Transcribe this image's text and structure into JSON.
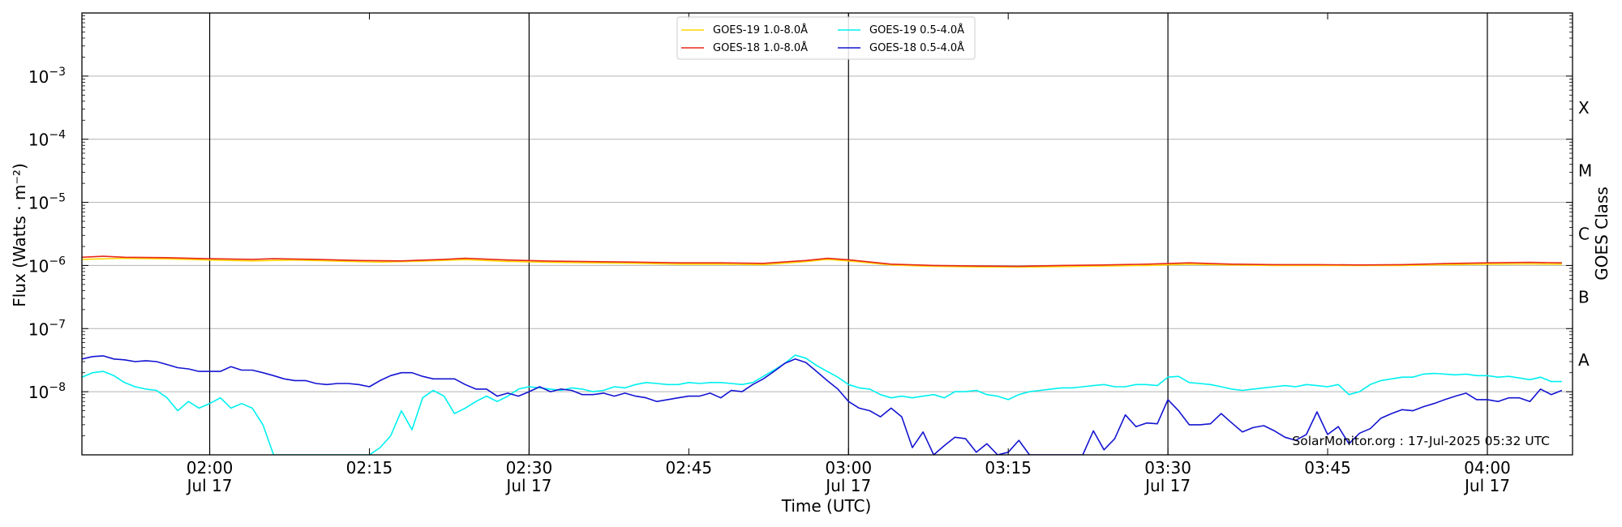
{
  "chart_data": {
    "type": "line",
    "ylabel": "Flux (Watts · m⁻²)",
    "y2label": "GOES Class",
    "xlabel": "Time (UTC)",
    "yscale": "log",
    "ylim": [
      1e-09,
      0.01
    ],
    "xlim": [
      "01:48",
      "04:08"
    ],
    "y_ticks": [
      {
        "value": 0.001,
        "base": "10",
        "exp": "−3"
      },
      {
        "value": 0.0001,
        "base": "10",
        "exp": "−4"
      },
      {
        "value": 1e-05,
        "base": "10",
        "exp": "−5"
      },
      {
        "value": 1e-06,
        "base": "10",
        "exp": "−6"
      },
      {
        "value": 1e-07,
        "base": "10",
        "exp": "−7"
      },
      {
        "value": 1e-08,
        "base": "10",
        "exp": "−8"
      }
    ],
    "x_ticks": [
      {
        "time": "02:00",
        "label": "02:00",
        "sub": "Jul 17"
      },
      {
        "time": "02:15",
        "label": "02:15",
        "sub": ""
      },
      {
        "time": "02:30",
        "label": "02:30",
        "sub": "Jul 17"
      },
      {
        "time": "02:45",
        "label": "02:45",
        "sub": ""
      },
      {
        "time": "03:00",
        "label": "03:00",
        "sub": "Jul 17"
      },
      {
        "time": "03:15",
        "label": "03:15",
        "sub": ""
      },
      {
        "time": "03:30",
        "label": "03:30",
        "sub": "Jul 17"
      },
      {
        "time": "03:45",
        "label": "03:45",
        "sub": ""
      },
      {
        "time": "04:00",
        "label": "04:00",
        "sub": "Jul 17"
      }
    ],
    "day_lines": [
      "02:00",
      "02:30",
      "03:00",
      "03:30",
      "04:00"
    ],
    "classes": [
      {
        "label": "X",
        "value": 0.000316
      },
      {
        "label": "M",
        "value": 3.16e-05
      },
      {
        "label": "C",
        "value": 3.16e-06
      },
      {
        "label": "B",
        "value": 3.16e-07
      },
      {
        "label": "A",
        "value": 3.16e-08
      }
    ],
    "grid": true,
    "legend_position": "top-center",
    "watermark": "SolarMonitor.org : 17-Jul-2025 05:32 UTC",
    "series": [
      {
        "name": "GOES-19 1.0-8.0Å",
        "color": "#ffd700",
        "x": [
          "01:48",
          "01:52",
          "01:56",
          "02:00",
          "02:04",
          "02:08",
          "02:12",
          "02:16",
          "02:20",
          "02:24",
          "02:28",
          "02:32",
          "02:36",
          "02:40",
          "02:44",
          "02:48",
          "02:52",
          "02:56",
          "02:58",
          "03:00",
          "03:04",
          "03:08",
          "03:12",
          "03:16",
          "03:20",
          "03:24",
          "03:28",
          "03:32",
          "03:36",
          "03:40",
          "03:44",
          "03:48",
          "03:52",
          "03:56",
          "04:00",
          "04:04",
          "04:07"
        ],
        "y": [
          1.25e-06,
          1.3e-06,
          1.27e-06,
          1.22e-06,
          1.18e-06,
          1.22e-06,
          1.17e-06,
          1.13e-06,
          1.17e-06,
          1.24e-06,
          1.16e-06,
          1.12e-06,
          1.1e-06,
          1.08e-06,
          1.05e-06,
          1.05e-06,
          1.03e-06,
          1.15e-06,
          1.25e-06,
          1.18e-06,
          1.02e-06,
          9.7e-07,
          9.5e-07,
          9.4e-07,
          9.6e-07,
          9.8e-07,
          1e-06,
          1.05e-06,
          1.02e-06,
          1e-06,
          1e-06,
          1e-06,
          1e-06,
          1.03e-06,
          1.05e-06,
          1.06e-06,
          1.05e-06
        ]
      },
      {
        "name": "GOES-18 1.0-8.0Å",
        "color": "#e8291b",
        "x": [
          "01:48",
          "01:50",
          "01:52",
          "01:56",
          "02:00",
          "02:04",
          "02:06",
          "02:10",
          "02:14",
          "02:18",
          "02:22",
          "02:24",
          "02:28",
          "02:32",
          "02:36",
          "02:40",
          "02:44",
          "02:48",
          "02:52",
          "02:56",
          "02:58",
          "03:00",
          "03:04",
          "03:08",
          "03:12",
          "03:16",
          "03:20",
          "03:24",
          "03:28",
          "03:32",
          "03:36",
          "03:40",
          "03:44",
          "03:48",
          "03:52",
          "03:56",
          "04:00",
          "04:04",
          "04:07"
        ],
        "y": [
          1.35e-06,
          1.4e-06,
          1.35e-06,
          1.33e-06,
          1.28e-06,
          1.25e-06,
          1.28e-06,
          1.25e-06,
          1.2e-06,
          1.18e-06,
          1.25e-06,
          1.3e-06,
          1.22e-06,
          1.17e-06,
          1.15e-06,
          1.13e-06,
          1.1e-06,
          1.1e-06,
          1.08e-06,
          1.2e-06,
          1.3e-06,
          1.23e-06,
          1.05e-06,
          1e-06,
          9.8e-07,
          9.7e-07,
          1e-06,
          1.02e-06,
          1.05e-06,
          1.1e-06,
          1.05e-06,
          1.03e-06,
          1.03e-06,
          1.02e-06,
          1.03e-06,
          1.07e-06,
          1.1e-06,
          1.12e-06,
          1.1e-06
        ]
      },
      {
        "name": "GOES-19 0.5-4.0Å",
        "color": "#00f0f0",
        "x": [
          "01:48",
          "01:49",
          "01:50",
          "01:51",
          "01:52",
          "01:53",
          "01:54",
          "01:55",
          "01:56",
          "01:57",
          "01:58",
          "01:59",
          "02:00",
          "02:01",
          "02:02",
          "02:03",
          "02:04",
          "02:05",
          "02:06",
          "02:07",
          "02:08",
          "02:09",
          "02:10",
          "02:11",
          "02:12",
          "02:13",
          "02:14",
          "02:15",
          "02:16",
          "02:17",
          "02:18",
          "02:19",
          "02:20",
          "02:21",
          "02:22",
          "02:23",
          "02:24",
          "02:25",
          "02:26",
          "02:27",
          "02:28",
          "02:29",
          "02:30",
          "02:31",
          "02:32",
          "02:33",
          "02:34",
          "02:35",
          "02:36",
          "02:37",
          "02:38",
          "02:39",
          "02:40",
          "02:41",
          "02:42",
          "02:43",
          "02:44",
          "02:45",
          "02:46",
          "02:47",
          "02:48",
          "02:49",
          "02:50",
          "02:51",
          "02:52",
          "02:53",
          "02:54",
          "02:55",
          "02:56",
          "02:57",
          "02:58",
          "02:59",
          "03:00",
          "03:01",
          "03:02",
          "03:03",
          "03:04",
          "03:05",
          "03:06",
          "03:07",
          "03:08",
          "03:09",
          "03:10",
          "03:11",
          "03:12",
          "03:13",
          "03:14",
          "03:15",
          "03:16",
          "03:17",
          "03:18",
          "03:19",
          "03:20",
          "03:21",
          "03:22",
          "03:23",
          "03:24",
          "03:25",
          "03:26",
          "03:27",
          "03:28",
          "03:29",
          "03:30",
          "03:31",
          "03:32",
          "03:33",
          "03:34",
          "03:35",
          "03:36",
          "03:37",
          "03:38",
          "03:39",
          "03:40",
          "03:41",
          "03:42",
          "03:43",
          "03:44",
          "03:45",
          "03:46",
          "03:47",
          "03:48",
          "03:49",
          "03:50",
          "03:51",
          "03:52",
          "03:53",
          "03:54",
          "03:55",
          "03:56",
          "03:57",
          "03:58",
          "03:59",
          "04:00",
          "04:01",
          "04:02",
          "04:03",
          "04:04",
          "04:05",
          "04:06",
          "04:07"
        ],
        "y": [
          1.7e-08,
          2e-08,
          2.1e-08,
          1.8e-08,
          1.4e-08,
          1.2e-08,
          1.1e-08,
          1.05e-08,
          8e-09,
          5e-09,
          7e-09,
          5.5e-09,
          6.5e-09,
          8e-09,
          5.5e-09,
          6.5e-09,
          5.5e-09,
          3e-09,
          1e-09,
          1e-09,
          1e-09,
          1e-09,
          1e-09,
          1e-09,
          1e-09,
          1e-09,
          1e-09,
          1e-09,
          1.3e-09,
          2e-09,
          5e-09,
          2.5e-09,
          8e-09,
          1.05e-08,
          8.5e-09,
          4.5e-09,
          5.5e-09,
          7e-09,
          8.5e-09,
          7e-09,
          8.5e-09,
          1.1e-08,
          1.2e-08,
          1.15e-08,
          1.1e-08,
          1.05e-08,
          1.15e-08,
          1.1e-08,
          1e-08,
          1.05e-08,
          1.2e-08,
          1.15e-08,
          1.3e-08,
          1.4e-08,
          1.35e-08,
          1.3e-08,
          1.3e-08,
          1.4e-08,
          1.35e-08,
          1.4e-08,
          1.4e-08,
          1.35e-08,
          1.3e-08,
          1.4e-08,
          1.75e-08,
          2.2e-08,
          2.8e-08,
          3.8e-08,
          3.4e-08,
          2.6e-08,
          2.1e-08,
          1.7e-08,
          1.3e-08,
          1.15e-08,
          1.1e-08,
          9e-09,
          8e-09,
          8.5e-09,
          8e-09,
          8.5e-09,
          9e-09,
          8e-09,
          1e-08,
          1e-08,
          1.05e-08,
          9e-09,
          8.5e-09,
          7.5e-09,
          9e-09,
          1e-08,
          1.05e-08,
          1.1e-08,
          1.15e-08,
          1.15e-08,
          1.2e-08,
          1.25e-08,
          1.3e-08,
          1.2e-08,
          1.2e-08,
          1.3e-08,
          1.3e-08,
          1.25e-08,
          1.7e-08,
          1.75e-08,
          1.4e-08,
          1.35e-08,
          1.3e-08,
          1.2e-08,
          1.1e-08,
          1.05e-08,
          1.1e-08,
          1.15e-08,
          1.2e-08,
          1.25e-08,
          1.2e-08,
          1.3e-08,
          1.25e-08,
          1.2e-08,
          1.3e-08,
          9e-09,
          1e-08,
          1.3e-08,
          1.5e-08,
          1.6e-08,
          1.7e-08,
          1.7e-08,
          1.9e-08,
          1.95e-08,
          1.9e-08,
          1.85e-08,
          1.9e-08,
          1.8e-08,
          1.8e-08,
          1.7e-08,
          1.75e-08,
          1.65e-08,
          1.55e-08,
          1.7e-08,
          1.45e-08,
          1.45e-08
        ]
      },
      {
        "name": "GOES-18 0.5-4.0Å",
        "color": "#1414d2",
        "x": [
          "01:48",
          "01:49",
          "01:50",
          "01:51",
          "01:52",
          "01:53",
          "01:54",
          "01:55",
          "01:56",
          "01:57",
          "01:58",
          "01:59",
          "02:00",
          "02:01",
          "02:02",
          "02:03",
          "02:04",
          "02:05",
          "02:06",
          "02:07",
          "02:08",
          "02:09",
          "02:10",
          "02:11",
          "02:12",
          "02:13",
          "02:14",
          "02:15",
          "02:16",
          "02:17",
          "02:18",
          "02:19",
          "02:20",
          "02:21",
          "02:22",
          "02:23",
          "02:24",
          "02:25",
          "02:26",
          "02:27",
          "02:28",
          "02:29",
          "02:30",
          "02:31",
          "02:32",
          "02:33",
          "02:34",
          "02:35",
          "02:36",
          "02:37",
          "02:38",
          "02:39",
          "02:40",
          "02:41",
          "02:42",
          "02:43",
          "02:44",
          "02:45",
          "02:46",
          "02:47",
          "02:48",
          "02:49",
          "02:50",
          "02:51",
          "02:52",
          "02:53",
          "02:54",
          "02:55",
          "02:56",
          "02:57",
          "02:58",
          "02:59",
          "03:00",
          "03:01",
          "03:02",
          "03:03",
          "03:04",
          "03:05",
          "03:06",
          "03:07",
          "03:08",
          "03:09",
          "03:10",
          "03:11",
          "03:12",
          "03:13",
          "03:14",
          "03:15",
          "03:16",
          "03:17",
          "03:18",
          "03:19",
          "03:20",
          "03:21",
          "03:22",
          "03:23",
          "03:24",
          "03:25",
          "03:26",
          "03:27",
          "03:28",
          "03:29",
          "03:30",
          "03:31",
          "03:32",
          "03:33",
          "03:34",
          "03:35",
          "03:36",
          "03:37",
          "03:38",
          "03:39",
          "03:40",
          "03:41",
          "03:42",
          "03:43",
          "03:44",
          "03:45",
          "03:46",
          "03:47",
          "03:48",
          "03:49",
          "03:50",
          "03:51",
          "03:52",
          "03:53",
          "03:54",
          "03:55",
          "03:56",
          "03:57",
          "03:58",
          "03:59",
          "04:00",
          "04:01",
          "04:02",
          "04:03",
          "04:04",
          "04:05",
          "04:06",
          "04:07"
        ],
        "y": [
          3.3e-08,
          3.6e-08,
          3.7e-08,
          3.3e-08,
          3.2e-08,
          3e-08,
          3.1e-08,
          3e-08,
          2.7e-08,
          2.4e-08,
          2.3e-08,
          2.1e-08,
          2.1e-08,
          2.1e-08,
          2.5e-08,
          2.2e-08,
          2.2e-08,
          2e-08,
          1.8e-08,
          1.6e-08,
          1.5e-08,
          1.5e-08,
          1.35e-08,
          1.3e-08,
          1.35e-08,
          1.35e-08,
          1.3e-08,
          1.2e-08,
          1.5e-08,
          1.8e-08,
          2e-08,
          2e-08,
          1.75e-08,
          1.6e-08,
          1.6e-08,
          1.6e-08,
          1.3e-08,
          1.1e-08,
          1.1e-08,
          8.5e-09,
          9.5e-09,
          8.5e-09,
          1e-08,
          1.2e-08,
          1e-08,
          1.1e-08,
          1.05e-08,
          9e-09,
          9e-09,
          9.5e-09,
          8.5e-09,
          9.5e-09,
          8.5e-09,
          8e-09,
          7e-09,
          7.5e-09,
          8e-09,
          8.5e-09,
          8.5e-09,
          9.5e-09,
          8e-09,
          1.05e-08,
          1e-08,
          1.3e-08,
          1.6e-08,
          2.1e-08,
          2.8e-08,
          3.3e-08,
          2.9e-08,
          2.1e-08,
          1.5e-08,
          1.1e-08,
          7e-09,
          5.5e-09,
          5e-09,
          4e-09,
          5.5e-09,
          4e-09,
          1.3e-09,
          2.3e-09,
          1e-09,
          1.4e-09,
          1.9e-09,
          1.8e-09,
          1.1e-09,
          1.5e-09,
          1e-09,
          1.1e-09,
          1.7e-09,
          1e-09,
          1e-09,
          1e-09,
          1e-09,
          1e-09,
          1e-09,
          2.4e-09,
          1.2e-09,
          1.8e-09,
          4.3e-09,
          2.8e-09,
          3.2e-09,
          3.1e-09,
          7.5e-09,
          5e-09,
          3e-09,
          3e-09,
          3.1e-09,
          4.5e-09,
          3.2e-09,
          2.3e-09,
          2.7e-09,
          2.9e-09,
          2.4e-09,
          1.9e-09,
          1.7e-09,
          2.1e-09,
          4.8e-09,
          2.1e-09,
          2.8e-09,
          1.5e-09,
          2.2e-09,
          2.6e-09,
          3.8e-09,
          4.5e-09,
          5.2e-09,
          5e-09,
          5.8e-09,
          6.5e-09,
          7.5e-09,
          8.5e-09,
          9.5e-09,
          7.5e-09,
          7.5e-09,
          7e-09,
          8e-09,
          8e-09,
          7e-09,
          1.1e-08,
          9e-09,
          1.05e-08
        ]
      }
    ]
  }
}
